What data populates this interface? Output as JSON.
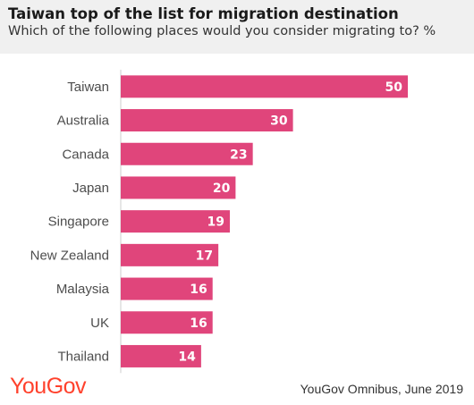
{
  "header": {
    "title": "Taiwan top of the list for migration destination",
    "subtitle": "Which of the following places would you consider migrating to? %"
  },
  "footer": {
    "logo": "YouGov",
    "source": "YouGov Omnibus, June 2019"
  },
  "colors": {
    "bar": "#e0457b",
    "bar_label": "#ffffff",
    "header_bg": "#f0f0f0",
    "logo": "#ff412c",
    "axis": "#cccccc"
  },
  "chart_data": {
    "type": "bar",
    "orientation": "horizontal",
    "categories": [
      "Taiwan",
      "Australia",
      "Canada",
      "Japan",
      "Singapore",
      "New Zealand",
      "Malaysia",
      "UK",
      "Thailand"
    ],
    "values": [
      50,
      30,
      23,
      20,
      19,
      17,
      16,
      16,
      14
    ],
    "title": "Taiwan top of the list for migration destination",
    "subtitle": "Which of the following places would you consider migrating to? %",
    "xlim": [
      0,
      50
    ],
    "grid": false,
    "legend": "none"
  }
}
